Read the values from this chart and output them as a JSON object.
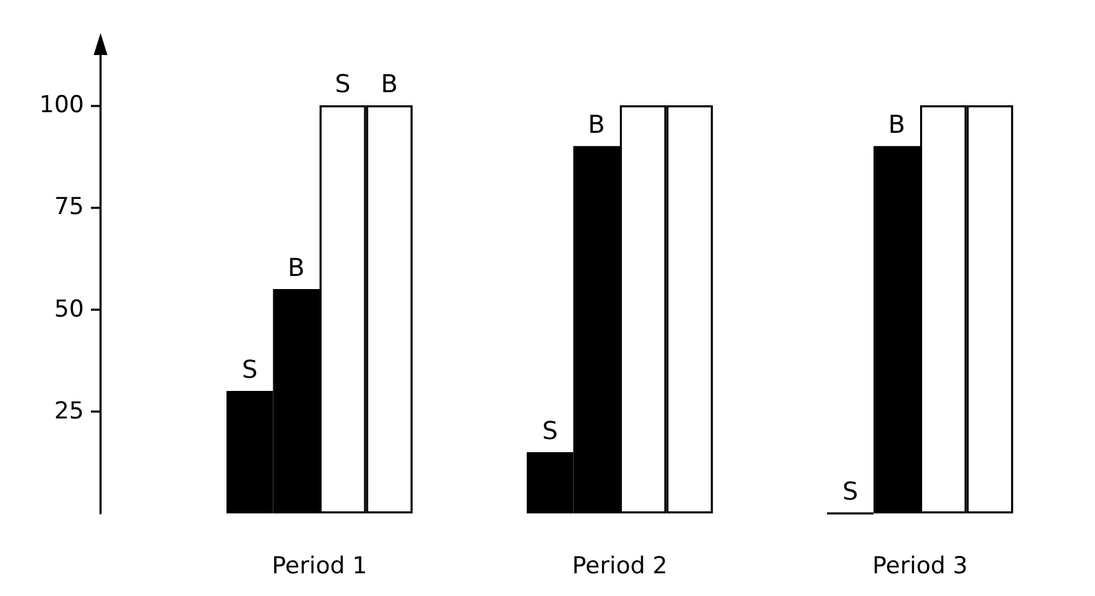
{
  "chart_data": {
    "type": "bar",
    "categories": [
      "Period 1",
      "Period 2",
      "Period 3"
    ],
    "series": [
      {
        "color": "#000000",
        "values": [
          30,
          15,
          0
        ],
        "value_labels": [
          "S",
          "S",
          "S"
        ]
      },
      {
        "color": "#000000",
        "values": [
          55,
          90,
          90
        ],
        "value_labels": [
          "B",
          "B",
          "B"
        ]
      },
      {
        "color": "#ffffff",
        "values": [
          100,
          100,
          100
        ],
        "value_labels": [
          "S",
          null,
          null
        ]
      },
      {
        "color": "#ffffff",
        "values": [
          100,
          100,
          100
        ],
        "value_labels": [
          "B",
          null,
          null
        ]
      }
    ],
    "ylim": [
      0,
      113
    ],
    "yticks": [
      25,
      50,
      75,
      100
    ],
    "grid": false
  }
}
